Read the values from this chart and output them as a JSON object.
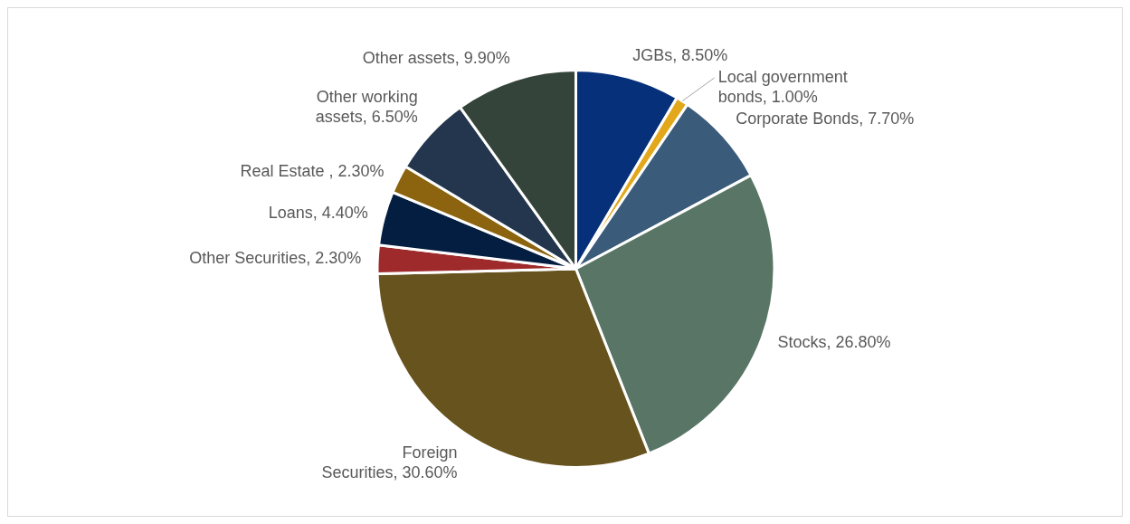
{
  "chart_data": {
    "type": "pie",
    "categories": [
      "JGBs",
      "Local government bonds",
      "Corporate Bonds",
      "Stocks",
      "Foreign Securities",
      "Other Securities",
      "Loans",
      "Real Estate ",
      "Other working assets",
      "Other assets"
    ],
    "values": [
      8.5,
      1.0,
      7.7,
      26.8,
      30.6,
      2.3,
      4.4,
      2.3,
      6.5,
      9.9
    ],
    "value_labels": [
      "8.50%",
      "1.00%",
      "7.70%",
      "26.80%",
      "30.60%",
      "2.30%",
      "4.40%",
      "2.30%",
      "6.50%",
      "9.90%"
    ],
    "colors": [
      "#06317a",
      "#e3a71c",
      "#3b5b7a",
      "#587565",
      "#66531e",
      "#9e2a2b",
      "#041e42",
      "#8c6410",
      "#23364d",
      "#35443a"
    ],
    "legend": false
  }
}
